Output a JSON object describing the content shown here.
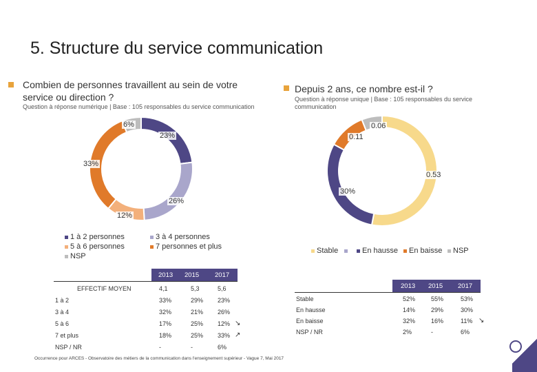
{
  "title": "5. Structure du service communication",
  "left": {
    "question": "Combien de personnes travaillent au sein de votre service ou direction ?",
    "subtitle": "Question à réponse numérique | Base : 105 responsables du service communication",
    "chart_data": {
      "type": "pie",
      "subtype": "donut",
      "categories": [
        "1 à 2 personnes",
        "3 à 4 personnes",
        "5 à 6 personnes",
        "7 personnes et plus",
        "NSP"
      ],
      "values": [
        23,
        26,
        12,
        33,
        6
      ],
      "labels": [
        "23%",
        "26%",
        "12%",
        "33%",
        "6%"
      ],
      "colors": [
        "#4e4785",
        "#a9a6cb",
        "#f3b07b",
        "#e07a2a",
        "#bdbdbd"
      ]
    },
    "legend": [
      "1 à 2 personnes",
      "3 à 4 personnes",
      "5 à 6 personnes",
      "7 personnes et plus",
      "NSP"
    ],
    "table": {
      "headers": [
        "2013",
        "2015",
        "2017"
      ],
      "rows": [
        {
          "label": "EFFECTIF MOYEN",
          "values": [
            "4,1",
            "5,3",
            "5,6"
          ],
          "arrow": ""
        },
        {
          "label": "1 à 2",
          "values": [
            "33%",
            "29%",
            "23%"
          ],
          "arrow": ""
        },
        {
          "label": "3 à 4",
          "values": [
            "32%",
            "21%",
            "26%"
          ],
          "arrow": ""
        },
        {
          "label": "5 à 6",
          "values": [
            "17%",
            "25%",
            "12%"
          ],
          "arrow": "down"
        },
        {
          "label": "7 et plus",
          "values": [
            "18%",
            "25%",
            "33%"
          ],
          "arrow": "up"
        },
        {
          "label": "NSP / NR",
          "values": [
            "-",
            "-",
            "6%"
          ],
          "arrow": ""
        }
      ]
    }
  },
  "right": {
    "question": "Depuis 2 ans, ce nombre est-il ?",
    "subtitle": "Question à réponse unique | Base : 105 responsables du service communication",
    "chart_data": {
      "type": "pie",
      "subtype": "donut",
      "categories": [
        "Stable",
        "En hausse",
        "En baisse",
        "NSP"
      ],
      "values": [
        0.53,
        0.3,
        0.11,
        0.06
      ],
      "labels": [
        "0.53",
        "30%",
        "0.11",
        "0.06"
      ],
      "colors": [
        "#f7d98b",
        "#4e4785",
        "#e07a2a",
        "#bdbdbd"
      ]
    },
    "legend": [
      "Stable",
      "",
      "En hausse",
      "En baisse",
      "NSP"
    ],
    "table": {
      "headers": [
        "2013",
        "2015",
        "2017"
      ],
      "rows": [
        {
          "label": "Stable",
          "values": [
            "52%",
            "55%",
            "53%"
          ],
          "arrow": ""
        },
        {
          "label": "En hausse",
          "values": [
            "14%",
            "29%",
            "30%"
          ],
          "arrow": ""
        },
        {
          "label": "En baisse",
          "values": [
            "32%",
            "16%",
            "11%"
          ],
          "arrow": "down"
        },
        {
          "label": "NSP / NR",
          "values": [
            "2%",
            "-",
            "6%"
          ],
          "arrow": ""
        }
      ]
    }
  },
  "footnote": "Occurrence pour ARCES - Observatoire des métiers de la communication dans l'enseignement supérieur - Vague 7, Mai 2017",
  "arrows": {
    "up": "↗",
    "down": "↘"
  },
  "colors": {
    "accent": "#e8a33c",
    "purple": "#4e4785"
  }
}
